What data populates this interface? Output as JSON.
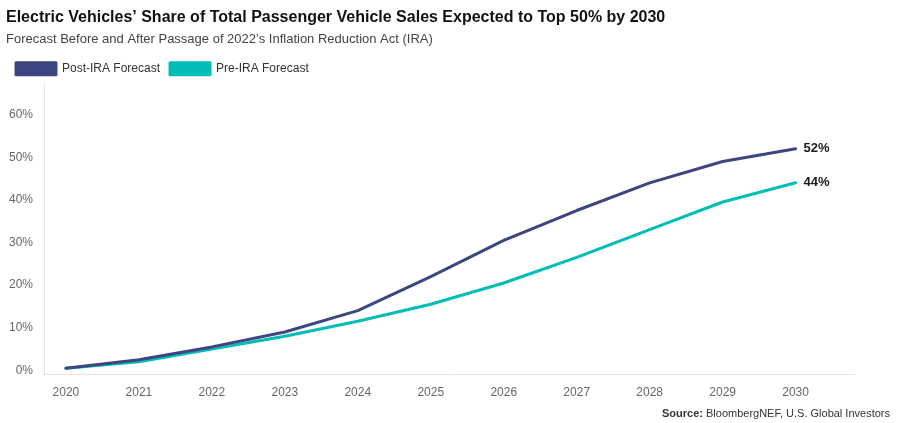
{
  "chart_data": {
    "type": "line",
    "title": "Electric Vehicles’ Share of Total Passenger Vehicle Sales Expected to Top 50% by 2030",
    "subtitle": "Forecast Before and After Passage of 2022’s Inflation Reduction Act (IRA)",
    "source": [
      "Source:",
      "BloombergNEF, U.S. Global Investors"
    ],
    "x": [
      2020,
      2021,
      2022,
      2023,
      2024,
      2025,
      2026,
      2027,
      2028,
      2029,
      2030
    ],
    "series": [
      {
        "name": "Post-IRA Forecast",
        "color": "#3d4680",
        "values": [
          0.5,
          2.5,
          5.5,
          9.0,
          14.0,
          22.0,
          30.5,
          37.5,
          44.0,
          49.0,
          52.0
        ]
      },
      {
        "name": "Pre-IRA Forecast",
        "color": "#00bdb5",
        "values": [
          0.5,
          2.0,
          5.0,
          8.0,
          11.5,
          15.5,
          20.5,
          26.5,
          33.0,
          39.5,
          44.0
        ]
      }
    ],
    "annotations": [
      {
        "text": "52%",
        "x": 2030,
        "y": 52
      },
      {
        "text": "44%",
        "x": 2030,
        "y": 44
      }
    ],
    "xlim": [
      2019.7,
      2030.8
    ],
    "xticks": [
      2020,
      2021,
      2022,
      2023,
      2024,
      2025,
      2026,
      2027,
      2028,
      2029,
      2030
    ],
    "ylim": [
      -1,
      67
    ],
    "yticks": [
      {
        "value": 0,
        "label": "0%"
      },
      {
        "value": 10,
        "label": "10%"
      },
      {
        "value": 20,
        "label": "20%"
      },
      {
        "value": 30,
        "label": "30%"
      },
      {
        "value": 40,
        "label": "40%"
      },
      {
        "value": 50,
        "label": "50%"
      },
      {
        "value": 60,
        "label": "60%"
      }
    ],
    "grid": false,
    "legend": "upper left"
  }
}
